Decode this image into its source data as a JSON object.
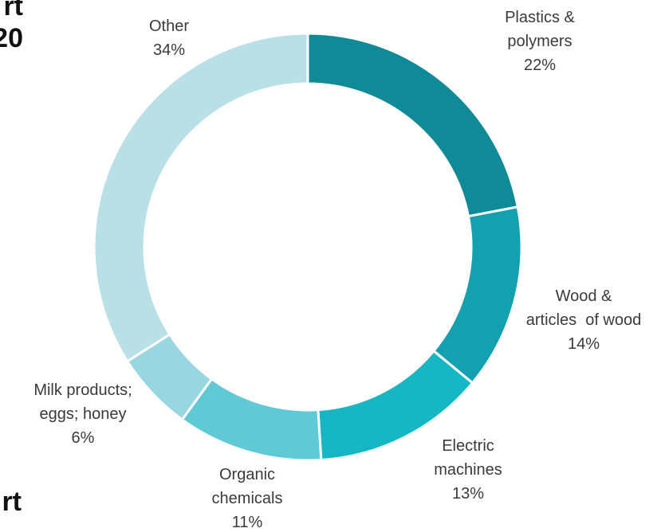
{
  "titles": {
    "top_line1": "rt",
    "top_line2": "20",
    "bottom_line1": "rt"
  },
  "chart_data": {
    "type": "pie",
    "variant": "donut",
    "slices": [
      {
        "label_lines": [
          "Plastics &",
          "polymers"
        ],
        "pct_text": "22%",
        "value": 22,
        "color": "#108a96"
      },
      {
        "label_lines": [
          "Wood &",
          "articles  of wood"
        ],
        "pct_text": "14%",
        "value": 14,
        "color": "#14a1af"
      },
      {
        "label_lines": [
          "Electric",
          "machines"
        ],
        "pct_text": "13%",
        "value": 13,
        "color": "#17b6c4"
      },
      {
        "label_lines": [
          "Organic",
          "chemicals"
        ],
        "pct_text": "11%",
        "value": 11,
        "color": "#5fc9d6"
      },
      {
        "label_lines": [
          "Milk products;",
          "eggs; honey"
        ],
        "pct_text": "6%",
        "value": 6,
        "color": "#98d7e0"
      },
      {
        "label_lines": [
          "Other"
        ],
        "pct_text": "34%",
        "value": 34,
        "color": "#b8e0e6"
      }
    ]
  }
}
